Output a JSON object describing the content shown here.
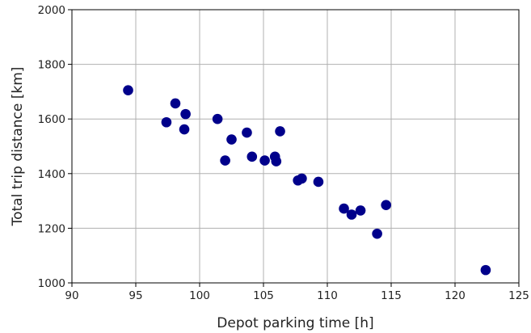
{
  "chart_data": {
    "type": "scatter",
    "title": "",
    "xlabel": "Depot parking time [h]",
    "ylabel": "Total trip distance [km]",
    "xlim": [
      90,
      125
    ],
    "ylim": [
      1000,
      2000
    ],
    "xticks": [
      "90",
      "95",
      "100",
      "105",
      "110",
      "115",
      "120",
      "125"
    ],
    "yticks": [
      "1000",
      "1200",
      "1400",
      "1600",
      "1800",
      "2000"
    ],
    "grid": true,
    "marker_color": "#00008B",
    "series": [
      {
        "points": [
          [
            94.4,
            1705
          ],
          [
            98.1,
            1657
          ],
          [
            98.9,
            1618
          ],
          [
            97.4,
            1588
          ],
          [
            98.8,
            1562
          ],
          [
            101.4,
            1600
          ],
          [
            103.7,
            1550
          ],
          [
            106.3,
            1555
          ],
          [
            102.5,
            1525
          ],
          [
            102.0,
            1448
          ],
          [
            104.1,
            1462
          ],
          [
            105.1,
            1448
          ],
          [
            105.9,
            1462
          ],
          [
            106.0,
            1445
          ],
          [
            107.7,
            1375
          ],
          [
            108.0,
            1382
          ],
          [
            109.3,
            1370
          ],
          [
            111.3,
            1272
          ],
          [
            111.9,
            1250
          ],
          [
            112.6,
            1265
          ],
          [
            114.6,
            1285
          ],
          [
            113.9,
            1180
          ],
          [
            122.4,
            1047
          ]
        ]
      }
    ]
  }
}
